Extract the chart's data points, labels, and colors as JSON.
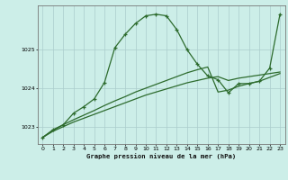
{
  "title": "Graphe pression niveau de la mer (hPa)",
  "background_color": "#cceee8",
  "grid_color": "#aacccc",
  "line_color": "#2d6b2d",
  "xlim": [
    -0.5,
    23.5
  ],
  "ylim": [
    1022.55,
    1026.15
  ],
  "yticks": [
    1023,
    1024,
    1025
  ],
  "xticks": [
    0,
    1,
    2,
    3,
    4,
    5,
    6,
    7,
    8,
    9,
    10,
    11,
    12,
    13,
    14,
    15,
    16,
    17,
    18,
    19,
    20,
    21,
    22,
    23
  ],
  "series_marked": {
    "x": [
      0,
      1,
      2,
      3,
      4,
      5,
      6,
      7,
      8,
      9,
      10,
      11,
      12,
      13,
      14,
      15,
      16,
      17,
      18,
      19,
      20,
      21,
      22,
      23
    ],
    "y": [
      1022.72,
      1022.92,
      1023.05,
      1023.35,
      1023.52,
      1023.72,
      1024.15,
      1025.05,
      1025.4,
      1025.68,
      1025.88,
      1025.92,
      1025.88,
      1025.52,
      1025.0,
      1024.62,
      1024.32,
      1024.22,
      1023.88,
      1024.12,
      1024.12,
      1024.18,
      1024.52,
      1025.92
    ]
  },
  "series_line1": {
    "x": [
      0,
      1,
      2,
      3,
      4,
      5,
      6,
      7,
      8,
      9,
      10,
      11,
      12,
      13,
      14,
      15,
      16,
      17,
      18,
      19,
      20,
      21,
      22,
      23
    ],
    "y": [
      1022.72,
      1022.88,
      1023.0,
      1023.12,
      1023.22,
      1023.32,
      1023.42,
      1023.52,
      1023.62,
      1023.72,
      1023.82,
      1023.9,
      1023.98,
      1024.06,
      1024.14,
      1024.2,
      1024.26,
      1024.3,
      1024.2,
      1024.26,
      1024.3,
      1024.34,
      1024.38,
      1024.42
    ]
  },
  "series_line2": {
    "x": [
      0,
      1,
      2,
      3,
      4,
      5,
      6,
      7,
      8,
      9,
      10,
      11,
      12,
      13,
      14,
      15,
      16,
      17,
      18,
      19,
      20,
      21,
      22,
      23
    ],
    "y": [
      1022.72,
      1022.9,
      1023.05,
      1023.18,
      1023.3,
      1023.42,
      1023.55,
      1023.67,
      1023.78,
      1023.9,
      1024.0,
      1024.1,
      1024.2,
      1024.3,
      1024.4,
      1024.48,
      1024.55,
      1023.9,
      1023.95,
      1024.05,
      1024.12,
      1024.18,
      1024.28,
      1024.38
    ]
  }
}
